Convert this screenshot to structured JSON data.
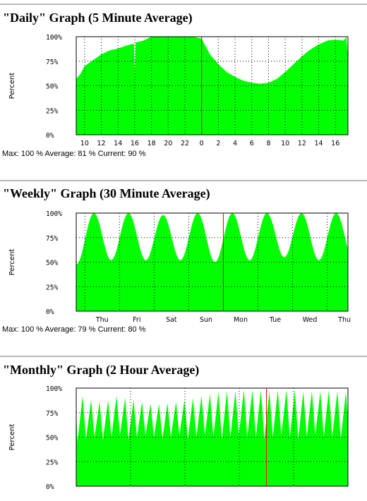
{
  "colors": {
    "fill": "#00ff00",
    "grid": "#000000",
    "now_line": "#ff0000",
    "separator": "#b8b8b8"
  },
  "chart_data": [
    {
      "type": "area",
      "title": "\"Daily\" Graph (5 Minute Average)",
      "ylabel": "Percent",
      "ylim": [
        0,
        100
      ],
      "y_ticks": [
        "0%",
        "25%",
        "50%",
        "75%",
        "100%"
      ],
      "x_ticks": [
        "10",
        "12",
        "14",
        "16",
        "18",
        "20",
        "22",
        "0",
        "2",
        "4",
        "6",
        "8",
        "10",
        "12",
        "14",
        "16"
      ],
      "x_range_hours": [
        9,
        41.5
      ],
      "now_marker_x": 24,
      "series": [
        {
          "x": [
            9,
            9.5,
            10,
            11,
            12,
            13,
            14,
            15,
            15.9,
            16,
            16.1,
            17,
            18,
            19,
            20,
            21,
            22,
            23,
            24,
            24.5,
            25,
            26,
            27,
            28,
            29,
            30,
            31,
            32,
            33,
            34,
            35,
            36,
            37,
            38,
            39,
            40,
            41,
            41.3,
            41.5
          ],
          "values": [
            57,
            62,
            70,
            76,
            82,
            86,
            88,
            91,
            93,
            60,
            94,
            96,
            100,
            100,
            100,
            100,
            100,
            100,
            98,
            90,
            82,
            72,
            64,
            59,
            55,
            53,
            52,
            53,
            57,
            64,
            72,
            80,
            87,
            92,
            96,
            97,
            96,
            100,
            80
          ]
        }
      ],
      "stats": {
        "max": "Max: 100 %",
        "average": "Average: 81 %",
        "current": "Current: 90 %"
      }
    },
    {
      "type": "area",
      "title": "\"Weekly\" Graph (30 Minute Average)",
      "ylabel": "Percent",
      "ylim": [
        0,
        100
      ],
      "y_ticks": [
        "0%",
        "25%",
        "50%",
        "75%",
        "100%"
      ],
      "x_ticks": [
        "Thu",
        "Fri",
        "Sat",
        "Sun",
        "Mon",
        "Tue",
        "Wed",
        "Thu"
      ],
      "x_range_days": [
        -0.75,
        7.1
      ],
      "now_marker_x": 3.5,
      "cycle": {
        "day_start": -0.75,
        "min_phase": 0.26,
        "max_phase": 0.76,
        "min_values": [
          48,
          52,
          52,
          52,
          50,
          52,
          55,
          52,
          52
        ],
        "max_values": [
          100,
          100,
          98,
          100,
          100,
          100,
          100,
          100,
          100
        ]
      },
      "stats": {
        "max": "Max: 100 %",
        "average": "Average: 79 %",
        "current": "Current: 80 %"
      }
    },
    {
      "type": "area",
      "title": "\"Monthly\" Graph (2 Hour Average)",
      "ylabel": "Percent",
      "ylim": [
        0,
        100
      ],
      "y_ticks": [
        "0%",
        "25%",
        "50%",
        "75%",
        "100%"
      ],
      "x_range_days": [
        0,
        32
      ],
      "cycle_days": 1,
      "now_marker_x": 22.4,
      "peak_values": [
        92,
        88,
        86,
        88,
        92,
        90,
        88,
        86,
        84,
        84,
        85,
        86,
        88,
        90,
        92,
        94,
        96,
        97,
        97,
        98,
        98,
        98,
        97,
        98,
        98,
        98,
        97,
        97,
        97,
        98,
        97,
        96
      ],
      "trough_values": [
        45,
        48,
        50,
        47,
        50,
        52,
        48,
        50,
        52,
        50,
        48,
        50,
        52,
        48,
        50,
        52,
        50,
        48,
        50,
        52,
        50,
        50,
        48,
        50,
        52,
        50,
        48,
        50,
        52,
        50,
        50,
        48
      ]
    }
  ]
}
